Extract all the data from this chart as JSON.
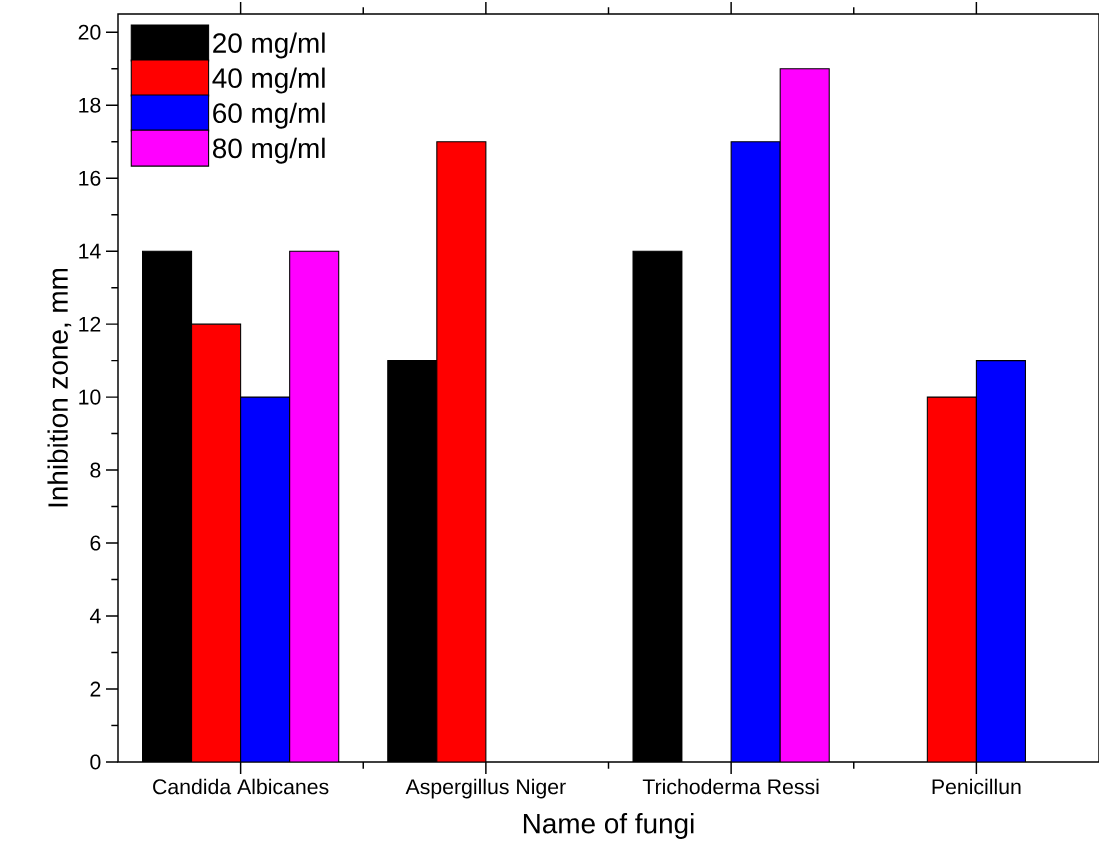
{
  "chart_data": {
    "type": "bar",
    "xlabel": "Name of fungi",
    "ylabel": "Inhibition zone, mm",
    "categories": [
      "Candida Albicanes",
      "Aspergillus Niger",
      "Trichoderma Ressi",
      "Penicillun"
    ],
    "series": [
      {
        "name": "20 mg/ml",
        "color": "#000000",
        "values": [
          14,
          11,
          14,
          null
        ]
      },
      {
        "name": "40 mg/ml",
        "color": "#ff0000",
        "values": [
          12,
          17,
          null,
          10
        ]
      },
      {
        "name": "60 mg/ml",
        "color": "#0000ff",
        "values": [
          10,
          null,
          17,
          11
        ]
      },
      {
        "name": "80 mg/ml",
        "color": "#ff00ff",
        "values": [
          14,
          null,
          19,
          null
        ]
      }
    ],
    "ylim": [
      0,
      20.5
    ],
    "yticks": [
      0,
      2,
      4,
      6,
      8,
      10,
      12,
      14,
      16,
      18,
      20
    ],
    "legend": "top left"
  }
}
